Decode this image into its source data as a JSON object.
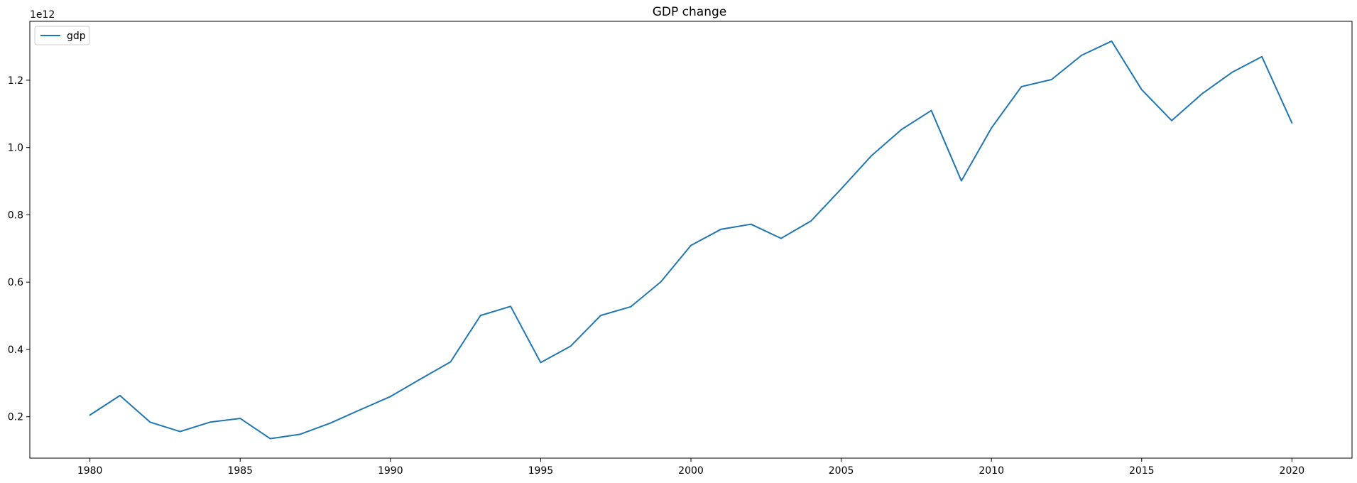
{
  "chart_data": {
    "type": "line",
    "title": "GDP change",
    "xlabel": "",
    "ylabel": "",
    "y_offset_label": "1e12",
    "y_scale": 1000000000000.0,
    "xlim": [
      1978,
      2022
    ],
    "ylim": [
      0.077,
      1.375
    ],
    "x_ticks": [
      1980,
      1985,
      1990,
      1995,
      2000,
      2005,
      2010,
      2015,
      2020
    ],
    "x_tick_labels": [
      "1980",
      "1985",
      "1990",
      "1995",
      "2000",
      "2005",
      "2010",
      "2015",
      "2020"
    ],
    "y_ticks": [
      0.2,
      0.4,
      0.6,
      0.8,
      1.0,
      1.2
    ],
    "y_tick_labels": [
      "0.2",
      "0.4",
      "0.6",
      "0.8",
      "1.0",
      "1.2"
    ],
    "grid": false,
    "legend_position": "top-left",
    "series": [
      {
        "name": "gdp",
        "color": "#1f77b4",
        "x": [
          1980,
          1981,
          1982,
          1983,
          1984,
          1985,
          1986,
          1987,
          1988,
          1989,
          1990,
          1991,
          1992,
          1993,
          1994,
          1995,
          1996,
          1997,
          1998,
          1999,
          2000,
          2001,
          2002,
          2003,
          2004,
          2005,
          2006,
          2007,
          2008,
          2009,
          2010,
          2011,
          2012,
          2013,
          2014,
          2015,
          2016,
          2017,
          2018,
          2019,
          2020
        ],
        "values": [
          0.205,
          0.263,
          0.184,
          0.156,
          0.184,
          0.195,
          0.135,
          0.148,
          0.181,
          0.221,
          0.26,
          0.312,
          0.363,
          0.501,
          0.528,
          0.361,
          0.41,
          0.501,
          0.527,
          0.601,
          0.709,
          0.757,
          0.772,
          0.73,
          0.782,
          0.877,
          0.975,
          1.053,
          1.11,
          0.901,
          1.058,
          1.181,
          1.202,
          1.274,
          1.316,
          1.172,
          1.08,
          1.159,
          1.223,
          1.27,
          1.073
        ]
      }
    ]
  }
}
